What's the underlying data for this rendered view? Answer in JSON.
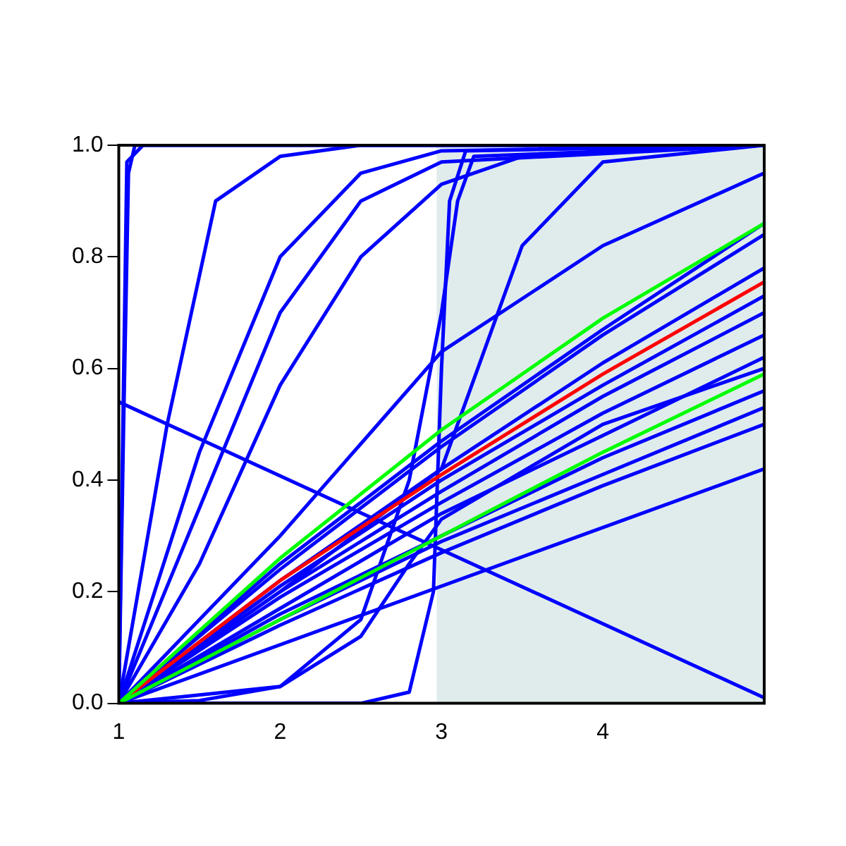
{
  "chart_data": {
    "type": "line",
    "xlim": [
      1,
      5
    ],
    "xticks": [
      1,
      2,
      3,
      4
    ],
    "ylim": [
      0,
      1
    ],
    "yticks": [
      {
        "value": 0,
        "label": "0.0"
      },
      {
        "value": 0.2,
        "label": "0.2"
      },
      {
        "value": 0.4,
        "label": "0.4"
      },
      {
        "value": 0.6,
        "label": "0.6"
      },
      {
        "value": 0.8,
        "label": "0.8"
      },
      {
        "value": 1,
        "label": "1.0"
      }
    ],
    "grid": false,
    "legend": false,
    "bands": [
      {
        "axis": "x",
        "from": 2.97,
        "to": 5,
        "color": "#e0ecec"
      }
    ],
    "series": [
      {
        "color": "#0000ff",
        "x": [
          1,
          1.03,
          1.06,
          1.1,
          5
        ],
        "values": [
          0,
          0.5,
          0.95,
          1,
          1
        ]
      },
      {
        "color": "#0000ff",
        "x": [
          1,
          1.05,
          1.15,
          5
        ],
        "values": [
          0,
          0.97,
          1,
          1
        ]
      },
      {
        "color": "#0000ff",
        "x": [
          1,
          1.3,
          1.6,
          2,
          2.5,
          5
        ],
        "values": [
          0,
          0.5,
          0.9,
          0.98,
          1,
          1
        ]
      },
      {
        "color": "#0000ff",
        "x": [
          1,
          1.5,
          2,
          2.5,
          3,
          5
        ],
        "values": [
          0,
          0.45,
          0.8,
          0.95,
          0.99,
          1
        ]
      },
      {
        "color": "#0000ff",
        "x": [
          1,
          1.5,
          2,
          2.5,
          3,
          5
        ],
        "values": [
          0,
          0.35,
          0.7,
          0.9,
          0.97,
          1
        ]
      },
      {
        "color": "#0000ff",
        "x": [
          1,
          1.5,
          2,
          2.5,
          3,
          3.5,
          5
        ],
        "values": [
          0,
          0.25,
          0.57,
          0.8,
          0.93,
          0.98,
          1
        ]
      },
      {
        "color": "#0000ff",
        "x": [
          1,
          2.5,
          2.8,
          2.95,
          3,
          3.05,
          3.15,
          5
        ],
        "values": [
          0,
          0,
          0.02,
          0.2,
          0.6,
          0.9,
          0.99,
          1
        ]
      },
      {
        "color": "#0000ff",
        "x": [
          1,
          2,
          2.5,
          2.8,
          3,
          3.1,
          3.2,
          5
        ],
        "values": [
          0,
          0.03,
          0.15,
          0.4,
          0.7,
          0.9,
          0.98,
          1
        ]
      },
      {
        "color": "#0000ff",
        "x": [
          1,
          2,
          3,
          3.5,
          4,
          5
        ],
        "values": [
          0,
          0.2,
          0.42,
          0.82,
          0.97,
          1
        ]
      },
      {
        "color": "#0000ff",
        "x": [
          1,
          2,
          3,
          4,
          5
        ],
        "values": [
          0,
          0.3,
          0.63,
          0.82,
          0.95
        ]
      },
      {
        "color": "#0000ff",
        "x": [
          1,
          5
        ],
        "values": [
          0.54,
          0.01
        ]
      },
      {
        "color": "#0000ff",
        "x": [
          1,
          5
        ],
        "values": [
          0,
          0.42
        ]
      },
      {
        "color": "#0000ff",
        "x": [
          1,
          1.5,
          2,
          2.5,
          2.8,
          3,
          4,
          5
        ],
        "values": [
          0,
          0.005,
          0.03,
          0.12,
          0.25,
          0.33,
          0.5,
          0.6
        ]
      },
      {
        "color": "#0000ff",
        "x": [
          1,
          2,
          3,
          4,
          5
        ],
        "values": [
          0,
          0.14,
          0.27,
          0.39,
          0.5
        ]
      },
      {
        "color": "#0000ff",
        "x": [
          1,
          2,
          3,
          4,
          5
        ],
        "values": [
          0,
          0.15,
          0.29,
          0.41,
          0.53
        ]
      },
      {
        "color": "#0000ff",
        "x": [
          1,
          2,
          3,
          4,
          5
        ],
        "values": [
          0,
          0.16,
          0.3,
          0.44,
          0.56
        ]
      },
      {
        "color": "#0000ff",
        "x": [
          1,
          2,
          3,
          4,
          5
        ],
        "values": [
          0,
          0.17,
          0.34,
          0.48,
          0.62
        ]
      },
      {
        "color": "#0000ff",
        "x": [
          1,
          2,
          3,
          4,
          5
        ],
        "values": [
          0,
          0.19,
          0.36,
          0.52,
          0.66
        ]
      },
      {
        "color": "#0000ff",
        "x": [
          1,
          2,
          3,
          4,
          5
        ],
        "values": [
          0,
          0.2,
          0.38,
          0.55,
          0.7
        ]
      },
      {
        "color": "#0000ff",
        "x": [
          1,
          2,
          3,
          4,
          5
        ],
        "values": [
          0,
          0.21,
          0.4,
          0.57,
          0.73
        ]
      },
      {
        "color": "#0000ff",
        "x": [
          1,
          2,
          3,
          4,
          5
        ],
        "values": [
          0,
          0.22,
          0.42,
          0.61,
          0.78
        ]
      },
      {
        "color": "#0000ff",
        "x": [
          1,
          2,
          3,
          4,
          5
        ],
        "values": [
          0,
          0.24,
          0.46,
          0.66,
          0.84
        ]
      },
      {
        "color": "#0000ff",
        "x": [
          1,
          2,
          3,
          4,
          5
        ],
        "values": [
          0,
          0.25,
          0.47,
          0.67,
          0.86
        ]
      },
      {
        "color": "#ff0000",
        "x": [
          1,
          2,
          3,
          4,
          5
        ],
        "values": [
          0,
          0.22,
          0.41,
          0.59,
          0.755
        ]
      },
      {
        "color": "#00ff00",
        "x": [
          1,
          2,
          3,
          4,
          5
        ],
        "values": [
          0,
          0.26,
          0.49,
          0.69,
          0.86
        ]
      },
      {
        "color": "#00ff00",
        "x": [
          1,
          2,
          3,
          4,
          5
        ],
        "values": [
          0,
          0.15,
          0.3,
          0.45,
          0.59
        ]
      }
    ]
  }
}
